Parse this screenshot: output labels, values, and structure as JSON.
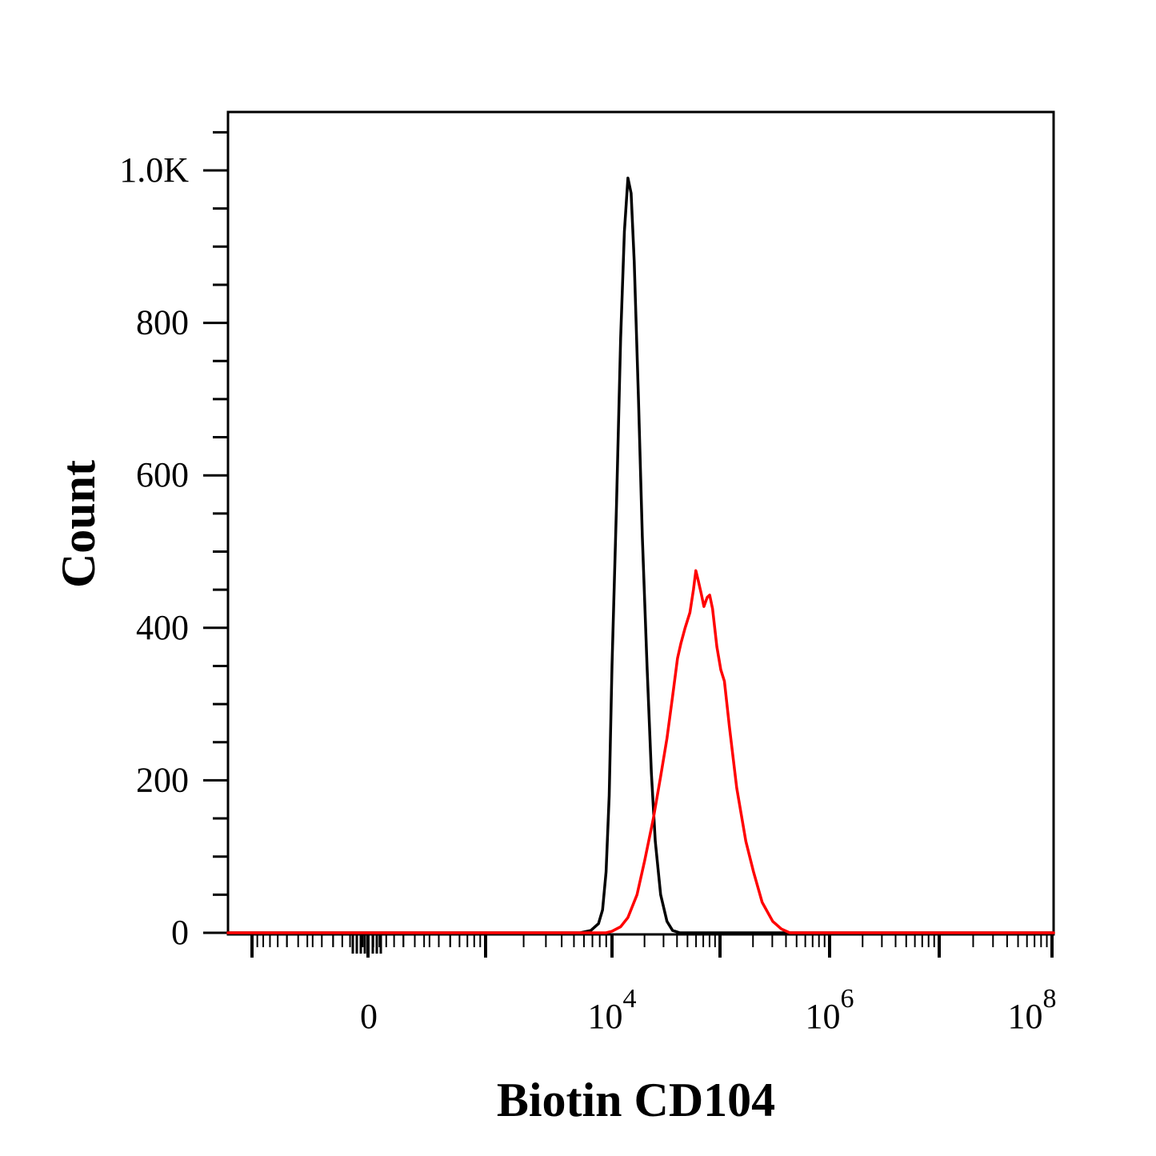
{
  "chart_data": {
    "type": "line",
    "xlabel": "Biotin CD104",
    "ylabel": "Count",
    "x_scale": "biexponential",
    "ylim": [
      0,
      1000
    ],
    "y_ticks": [
      {
        "value": 0,
        "label": "0"
      },
      {
        "value": 200,
        "label": "200"
      },
      {
        "value": 400,
        "label": "400"
      },
      {
        "value": 600,
        "label": "600"
      },
      {
        "value": 800,
        "label": "800"
      },
      {
        "value": 1000,
        "label": "1.0K"
      }
    ],
    "x_ticks": [
      {
        "value": 0,
        "base": "0",
        "exp": ""
      },
      {
        "value": 10000,
        "base": "10",
        "exp": "4"
      },
      {
        "value": 1000000,
        "base": "10",
        "exp": "6"
      },
      {
        "value": 100000000,
        "base": "10",
        "exp": "8"
      }
    ],
    "colors": {
      "isotype": "#000000",
      "stained": "#ff0000"
    },
    "series": [
      {
        "color": "#000000",
        "points": [
          [
            3000,
            0
          ],
          [
            4500,
            3
          ],
          [
            6000,
            12
          ],
          [
            7000,
            30
          ],
          [
            8000,
            80
          ],
          [
            9000,
            180
          ],
          [
            10000,
            350
          ],
          [
            11000,
            560
          ],
          [
            12000,
            780
          ],
          [
            13000,
            920
          ],
          [
            14000,
            990
          ],
          [
            15000,
            970
          ],
          [
            16000,
            880
          ],
          [
            17500,
            700
          ],
          [
            19000,
            520
          ],
          [
            21000,
            350
          ],
          [
            23000,
            210
          ],
          [
            25000,
            120
          ],
          [
            28000,
            50
          ],
          [
            32000,
            15
          ],
          [
            36000,
            3
          ],
          [
            42000,
            0
          ],
          [
            3000000,
            0
          ],
          [
            100000000,
            0
          ]
        ]
      },
      {
        "color": "#ff0000",
        "points": [
          [
            8000,
            0
          ],
          [
            10000,
            2
          ],
          [
            12000,
            8
          ],
          [
            14000,
            20
          ],
          [
            17000,
            50
          ],
          [
            20000,
            95
          ],
          [
            24000,
            150
          ],
          [
            28000,
            205
          ],
          [
            32000,
            255
          ],
          [
            36000,
            310
          ],
          [
            40000,
            360
          ],
          [
            43000,
            380
          ],
          [
            47000,
            400
          ],
          [
            52000,
            420
          ],
          [
            56000,
            450
          ],
          [
            59000,
            475
          ],
          [
            62000,
            462
          ],
          [
            66000,
            445
          ],
          [
            70000,
            428
          ],
          [
            75000,
            440
          ],
          [
            79000,
            443
          ],
          [
            84000,
            425
          ],
          [
            92000,
            375
          ],
          [
            100000,
            345
          ],
          [
            108000,
            330
          ],
          [
            120000,
            270
          ],
          [
            140000,
            190
          ],
          [
            170000,
            120
          ],
          [
            200000,
            80
          ],
          [
            240000,
            40
          ],
          [
            300000,
            15
          ],
          [
            360000,
            5
          ],
          [
            430000,
            0
          ],
          [
            100000000,
            0
          ]
        ]
      }
    ]
  }
}
